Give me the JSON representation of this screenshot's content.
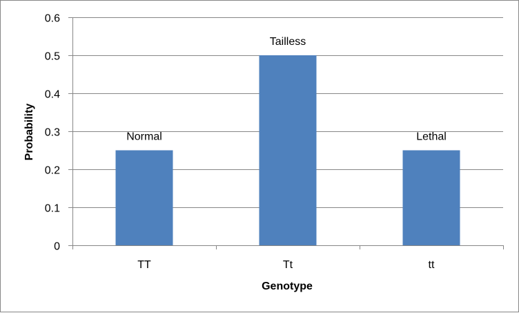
{
  "chart_data": {
    "type": "bar",
    "title": "",
    "xlabel": "Genotype",
    "ylabel": "Probability",
    "categories": [
      "TT",
      "Tt",
      "tt"
    ],
    "values": [
      0.25,
      0.5,
      0.25
    ],
    "data_labels": [
      "Normal",
      "Tailless",
      "Lethal"
    ],
    "ylim": [
      0,
      0.6
    ],
    "y_ticks": [
      "0",
      "0.1",
      "0.2",
      "0.3",
      "0.4",
      "0.5",
      "0.6"
    ],
    "grid": true,
    "legend": "none",
    "bar_color": "#4F81BD",
    "grid_color": "#868686"
  }
}
